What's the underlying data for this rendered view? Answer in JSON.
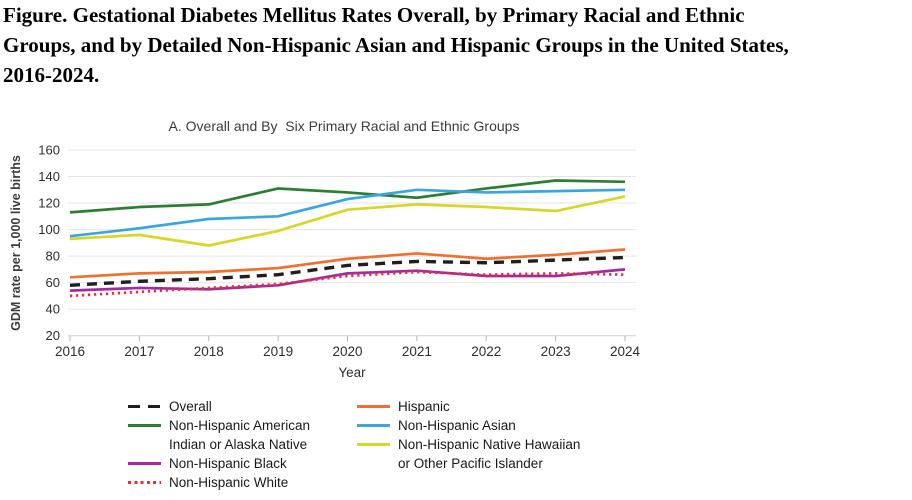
{
  "figure_title_lines": [
    "Figure. Gestational Diabetes Mellitus Rates Overall, by Primary Racial and Ethnic",
    "Groups, and by Detailed Non-Hispanic Asian and Hispanic Groups in the United States,",
    "2016-2024."
  ],
  "chart_data": {
    "type": "line",
    "title": "A. Overall and By  Six Primary Racial and Ethnic Groups",
    "xlabel": "Year",
    "ylabel": "GDM rate per 1,000 live births",
    "x": [
      2016,
      2017,
      2018,
      2019,
      2020,
      2021,
      2022,
      2023,
      2024
    ],
    "ylim": [
      20,
      160
    ],
    "yticks": [
      20,
      40,
      60,
      80,
      100,
      120,
      140,
      160
    ],
    "grid": true,
    "legend_position": "bottom",
    "units": "GDM rate per 1,000 live births",
    "series": [
      {
        "id": "aian",
        "name": "Non-Hispanic American Indian or Alaska Native",
        "color": "#2d7d33",
        "dash": "solid",
        "values": [
          113,
          117,
          119,
          131,
          128,
          124,
          131,
          137,
          136
        ]
      },
      {
        "id": "asian",
        "name": "Non-Hispanic Asian",
        "color": "#3ba6dc",
        "dash": "solid",
        "values": [
          95,
          101,
          108,
          110,
          123,
          130,
          128,
          129,
          130
        ]
      },
      {
        "id": "nhpi",
        "name": "Non-Hispanic Native Hawaiian or Other Pacific Islander",
        "color": "#d6d62b",
        "dash": "solid",
        "values": [
          93,
          96,
          88,
          99,
          115,
          119,
          117,
          114,
          125
        ]
      },
      {
        "id": "hispanic",
        "name": "Hispanic",
        "color": "#ee7130",
        "dash": "solid",
        "values": [
          64,
          67,
          68,
          71,
          78,
          82,
          78,
          81,
          85
        ]
      },
      {
        "id": "overall",
        "name": "Overall",
        "color": "#1f1f1f",
        "dash": "dashed",
        "values": [
          58,
          61,
          63,
          66,
          73,
          76,
          75,
          77,
          79
        ]
      },
      {
        "id": "black",
        "name": "Non-Hispanic Black",
        "color": "#a22c9b",
        "dash": "solid",
        "values": [
          54,
          56,
          55,
          58,
          67,
          69,
          65,
          65,
          70
        ]
      },
      {
        "id": "white",
        "name": "Non-Hispanic White",
        "color": "#ee2e31",
        "dash": "dotted",
        "values": [
          50,
          53,
          56,
          59,
          65,
          68,
          66,
          67,
          66
        ]
      }
    ]
  },
  "legend": {
    "columns": [
      [
        {
          "series": "overall",
          "lines": [
            "Overall"
          ]
        },
        {
          "series": "aian",
          "lines": [
            "Non-Hispanic American",
            "Indian or Alaska Native"
          ]
        },
        {
          "series": "black",
          "lines": [
            "Non-Hispanic Black"
          ]
        },
        {
          "series": "white",
          "lines": [
            "Non-Hispanic White"
          ]
        }
      ],
      [
        {
          "series": "hispanic",
          "lines": [
            "Hispanic"
          ]
        },
        {
          "series": "asian",
          "lines": [
            "Non-Hispanic Asian"
          ]
        },
        {
          "series": "nhpi",
          "lines": [
            "Non-Hispanic Native Hawaiian",
            "or Other Pacific Islander"
          ]
        }
      ]
    ]
  }
}
